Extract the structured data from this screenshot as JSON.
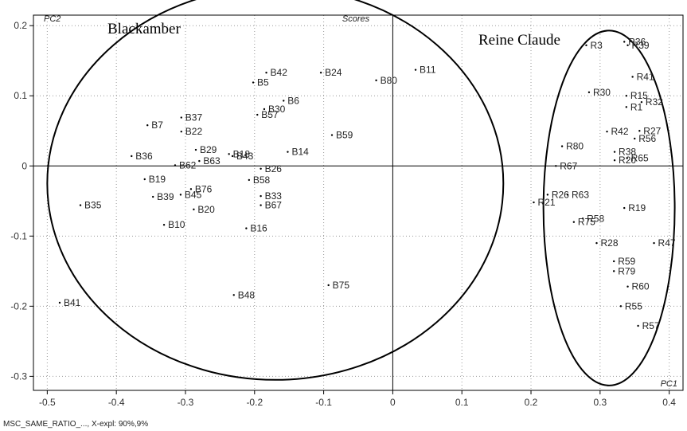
{
  "chart_data": {
    "type": "scatter",
    "title": "Scores",
    "xlabel": "PC1",
    "ylabel": "PC2",
    "xlim": [
      -0.52,
      0.42
    ],
    "ylim": [
      -0.32,
      0.215
    ],
    "xticks": [
      -0.5,
      -0.4,
      -0.3,
      -0.2,
      -0.1,
      0,
      0.1,
      0.2,
      0.3,
      0.4
    ],
    "yticks": [
      0.2,
      0.1,
      0,
      -0.1,
      -0.2,
      -0.3
    ],
    "grid": true,
    "footer": "MSC_SAME_RATIO_..., X-expl: 90%,9%",
    "groups": [
      {
        "name": "Blackamber",
        "cx": -0.17,
        "cy": -0.025,
        "rx": 0.33,
        "ry": 0.28
      },
      {
        "name": "Reine Claude",
        "cx": 0.313,
        "cy": -0.06,
        "rx": 0.095,
        "ry": 0.253
      }
    ],
    "points": [
      {
        "label": "B11",
        "x": 0.033,
        "y": 0.137
      },
      {
        "label": "B80",
        "x": -0.024,
        "y": 0.122
      },
      {
        "label": "B24",
        "x": -0.104,
        "y": 0.133
      },
      {
        "label": "B42",
        "x": -0.183,
        "y": 0.133
      },
      {
        "label": "B5",
        "x": -0.202,
        "y": 0.119
      },
      {
        "label": "B6",
        "x": -0.158,
        "y": 0.093
      },
      {
        "label": "B30",
        "x": -0.186,
        "y": 0.081
      },
      {
        "label": "B57",
        "x": -0.196,
        "y": 0.073
      },
      {
        "label": "B37",
        "x": -0.306,
        "y": 0.069
      },
      {
        "label": "B7",
        "x": -0.355,
        "y": 0.058
      },
      {
        "label": "B22",
        "x": -0.306,
        "y": 0.049
      },
      {
        "label": "B59",
        "x": -0.088,
        "y": 0.044
      },
      {
        "label": "B29",
        "x": -0.285,
        "y": 0.023
      },
      {
        "label": "B14",
        "x": -0.152,
        "y": 0.02
      },
      {
        "label": "B18",
        "x": -0.237,
        "y": 0.017
      },
      {
        "label": "B43",
        "x": -0.232,
        "y": 0.014
      },
      {
        "label": "B36",
        "x": -0.378,
        "y": 0.014
      },
      {
        "label": "B63",
        "x": -0.28,
        "y": 0.007
      },
      {
        "label": "B62",
        "x": -0.315,
        "y": 0.001
      },
      {
        "label": "B26",
        "x": -0.191,
        "y": -0.004
      },
      {
        "label": "B58",
        "x": -0.208,
        "y": -0.02
      },
      {
        "label": "B19",
        "x": -0.359,
        "y": -0.019
      },
      {
        "label": "B76",
        "x": -0.292,
        "y": -0.033
      },
      {
        "label": "B45",
        "x": -0.307,
        "y": -0.041
      },
      {
        "label": "B39",
        "x": -0.347,
        "y": -0.044
      },
      {
        "label": "B33",
        "x": -0.191,
        "y": -0.043
      },
      {
        "label": "B67",
        "x": -0.191,
        "y": -0.056
      },
      {
        "label": "B20",
        "x": -0.288,
        "y": -0.062
      },
      {
        "label": "B35",
        "x": -0.452,
        "y": -0.056
      },
      {
        "label": "B10",
        "x": -0.331,
        "y": -0.084
      },
      {
        "label": "B16",
        "x": -0.212,
        "y": -0.089
      },
      {
        "label": "B75",
        "x": -0.093,
        "y": -0.17
      },
      {
        "label": "B48",
        "x": -0.23,
        "y": -0.184
      },
      {
        "label": "B41",
        "x": -0.482,
        "y": -0.195
      },
      {
        "label": "R3",
        "x": 0.28,
        "y": 0.172
      },
      {
        "label": "R36",
        "x": 0.335,
        "y": 0.177
      },
      {
        "label": "R39",
        "x": 0.34,
        "y": 0.172
      },
      {
        "label": "R41",
        "x": 0.347,
        "y": 0.127
      },
      {
        "label": "R30",
        "x": 0.284,
        "y": 0.105
      },
      {
        "label": "R15",
        "x": 0.338,
        "y": 0.1
      },
      {
        "label": "R32",
        "x": 0.36,
        "y": 0.091
      },
      {
        "label": "R1",
        "x": 0.338,
        "y": 0.084
      },
      {
        "label": "R42",
        "x": 0.31,
        "y": 0.049
      },
      {
        "label": "R27",
        "x": 0.357,
        "y": 0.05
      },
      {
        "label": "R56",
        "x": 0.35,
        "y": 0.039
      },
      {
        "label": "R80",
        "x": 0.245,
        "y": 0.028
      },
      {
        "label": "R38",
        "x": 0.321,
        "y": 0.02
      },
      {
        "label": "R65",
        "x": 0.339,
        "y": 0.011
      },
      {
        "label": "R20",
        "x": 0.321,
        "y": 0.008
      },
      {
        "label": "R67",
        "x": 0.236,
        "y": 0.0
      },
      {
        "label": "R26",
        "x": 0.224,
        "y": -0.041
      },
      {
        "label": "R63",
        "x": 0.253,
        "y": -0.041
      },
      {
        "label": "R21",
        "x": 0.204,
        "y": -0.052
      },
      {
        "label": "R19",
        "x": 0.335,
        "y": -0.06
      },
      {
        "label": "R58",
        "x": 0.275,
        "y": -0.075
      },
      {
        "label": "R75",
        "x": 0.262,
        "y": -0.08
      },
      {
        "label": "R28",
        "x": 0.295,
        "y": -0.11
      },
      {
        "label": "R47",
        "x": 0.378,
        "y": -0.11
      },
      {
        "label": "R59",
        "x": 0.32,
        "y": -0.136
      },
      {
        "label": "R79",
        "x": 0.32,
        "y": -0.15
      },
      {
        "label": "R60",
        "x": 0.34,
        "y": -0.172
      },
      {
        "label": "R55",
        "x": 0.33,
        "y": -0.2
      },
      {
        "label": "R57",
        "x": 0.355,
        "y": -0.228
      }
    ]
  }
}
